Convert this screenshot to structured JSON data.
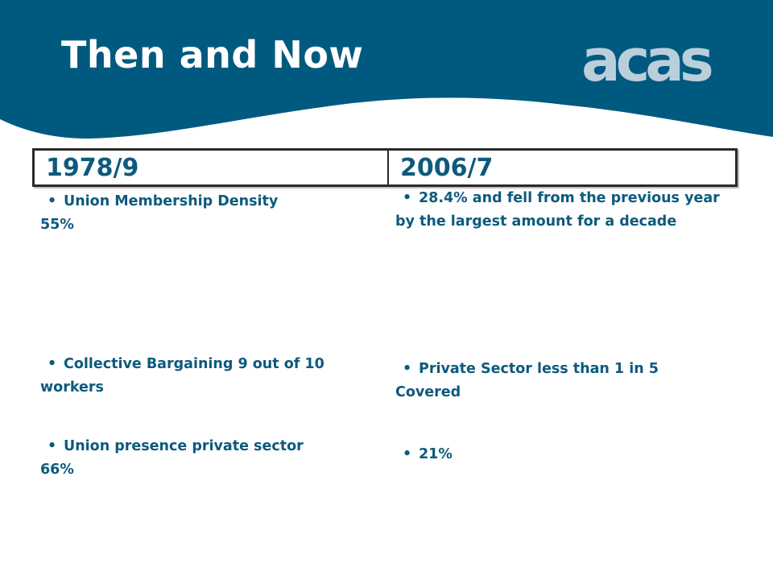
{
  "slide": {
    "title": "Then and Now",
    "logo_text": "acas",
    "colors": {
      "header": "#005a7f",
      "text": "#0d5a7d",
      "logo": "#b9cfdc"
    }
  },
  "table": {
    "headers": [
      "1978/9",
      "2006/7"
    ],
    "rows": [
      {
        "then": {
          "bullet": "Union Membership Density",
          "value": "55%"
        },
        "now": {
          "text": "28.4% and fell from the previous year by the largest amount for a decade"
        }
      },
      {
        "then": {
          "bullet": "Collective Bargaining 9 out of 10",
          "value": "workers"
        },
        "now": {
          "bullet": "Private Sector less than 1 in 5",
          "value": "Covered"
        }
      },
      {
        "then": {
          "bullet": "Union presence private sector",
          "value": "66%"
        },
        "now": {
          "text": "21%"
        }
      }
    ]
  }
}
